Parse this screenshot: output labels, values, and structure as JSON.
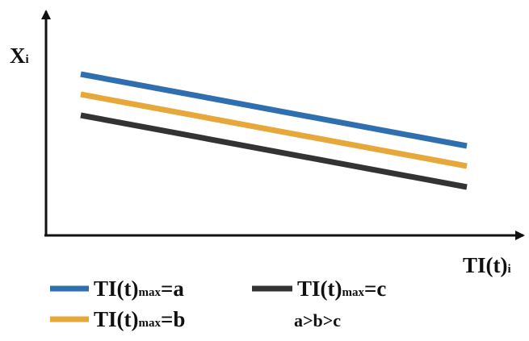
{
  "axes": {
    "y_label": {
      "text": "X",
      "subscript": "i"
    },
    "x_label": {
      "text": "TI(t)",
      "subscript": "i"
    }
  },
  "legend": [
    {
      "prefix": "TI(t)",
      "subscript": "max",
      "suffix": "=a"
    },
    {
      "prefix": "TI(t)",
      "subscript": "max",
      "suffix": "=c"
    },
    {
      "prefix": "TI(t)",
      "subscript": "max",
      "suffix": "=b"
    }
  ],
  "note": "a>b>c"
}
